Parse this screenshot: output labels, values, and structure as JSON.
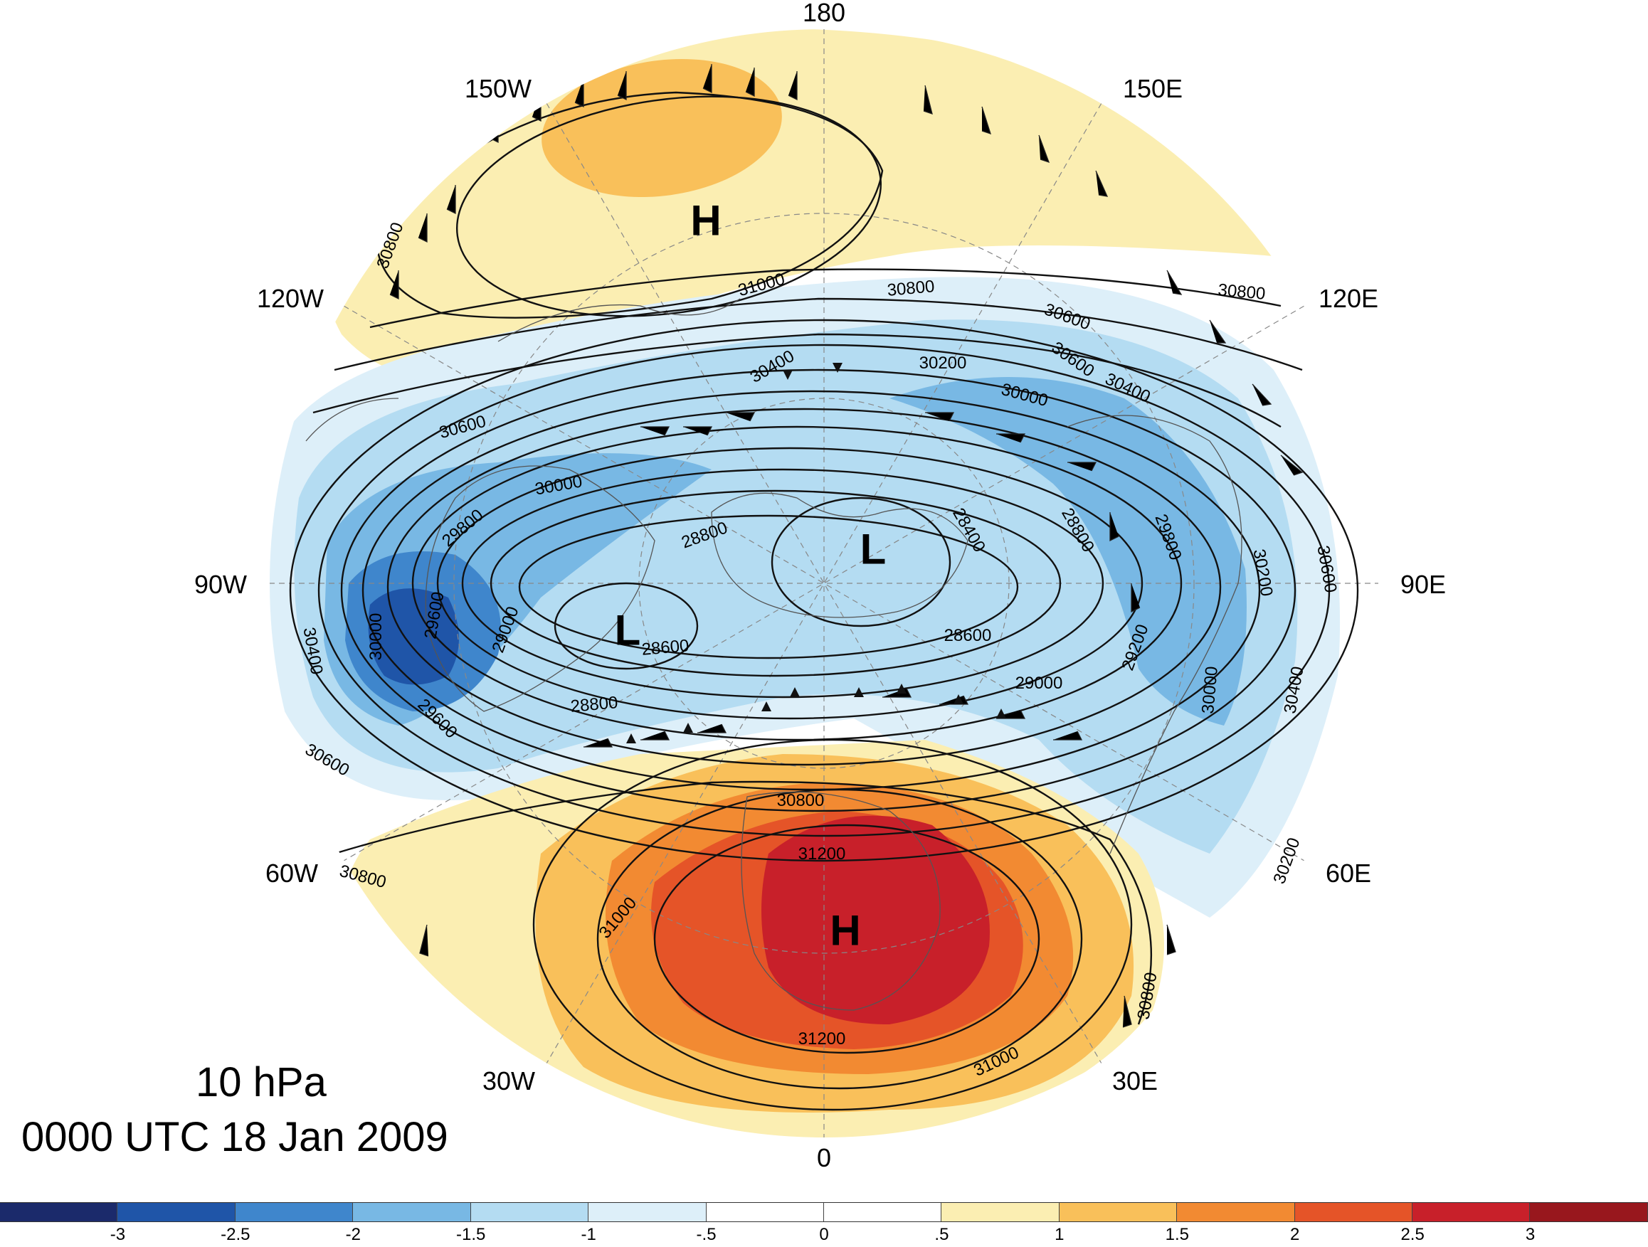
{
  "title": {
    "level": "10 hPa",
    "time": "0000 UTC 18 Jan 2009"
  },
  "longitude_labels": [
    "180",
    "150E",
    "120E",
    "90E",
    "60E",
    "30E",
    "0",
    "30W",
    "60W",
    "90W",
    "120W",
    "150W"
  ],
  "centers": [
    {
      "type": "H",
      "label": "H"
    },
    {
      "type": "L",
      "label": "L"
    },
    {
      "type": "L",
      "label": "L"
    },
    {
      "type": "H",
      "label": "H"
    }
  ],
  "contour_labels": [
    "31000",
    "30800",
    "30800",
    "30800",
    "30600",
    "30400",
    "30200",
    "30000",
    "30600",
    "30400",
    "30000",
    "29800",
    "28800",
    "28400",
    "29600",
    "29000",
    "30000",
    "30400",
    "29600",
    "28600",
    "28600",
    "28800",
    "29000",
    "29200",
    "30000",
    "30400",
    "30200",
    "29800",
    "28800",
    "30600",
    "30600",
    "30200",
    "30800",
    "31200",
    "31000",
    "31200",
    "31000",
    "30800",
    "30800",
    "30600"
  ],
  "colorbar": {
    "ticks": [
      "-3",
      "-2.5",
      "-2",
      "-1.5",
      "-1",
      "-.5",
      "0",
      ".5",
      "1",
      "1.5",
      "2",
      "2.5",
      "3"
    ],
    "colors": [
      "#1b2a6b",
      "#1f55a8",
      "#3f86cc",
      "#78b8e4",
      "#b4dcf2",
      "#ddeff9",
      "#ffffff",
      "#ffffff",
      "#fbeeb2",
      "#f9c05a",
      "#f28a32",
      "#e55428",
      "#c8202a",
      "#98171d"
    ]
  }
}
